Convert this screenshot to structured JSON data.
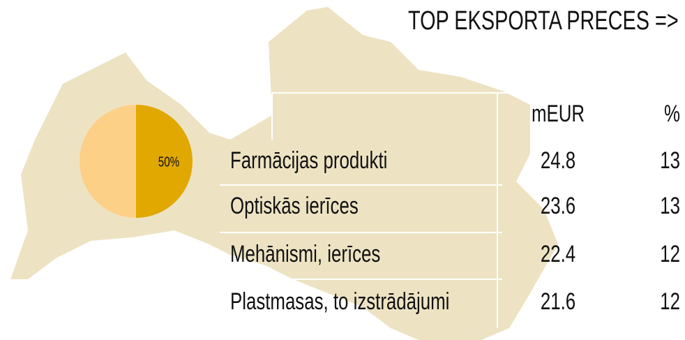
{
  "chart_data": {
    "type": "pie",
    "values": [
      50,
      50
    ],
    "value_labels": [
      null,
      "50%"
    ],
    "colors": [
      "#fdd088",
      "#e0a800"
    ]
  },
  "table": {
    "title": "TOP EKSPORTA PRECES =>",
    "headers": [
      "mEUR",
      "%"
    ],
    "rows": [
      {
        "name": "Farmācijas produkti",
        "values": [
          24.8,
          13
        ]
      },
      {
        "name": "Optiskās ierīces",
        "values": [
          23.6,
          13
        ]
      },
      {
        "name": "Mehānismi, ierīces",
        "values": [
          22.4,
          12
        ]
      },
      {
        "name": "Plastmasas, to izstrādājumi",
        "values": [
          21.6,
          12
        ]
      }
    ]
  }
}
